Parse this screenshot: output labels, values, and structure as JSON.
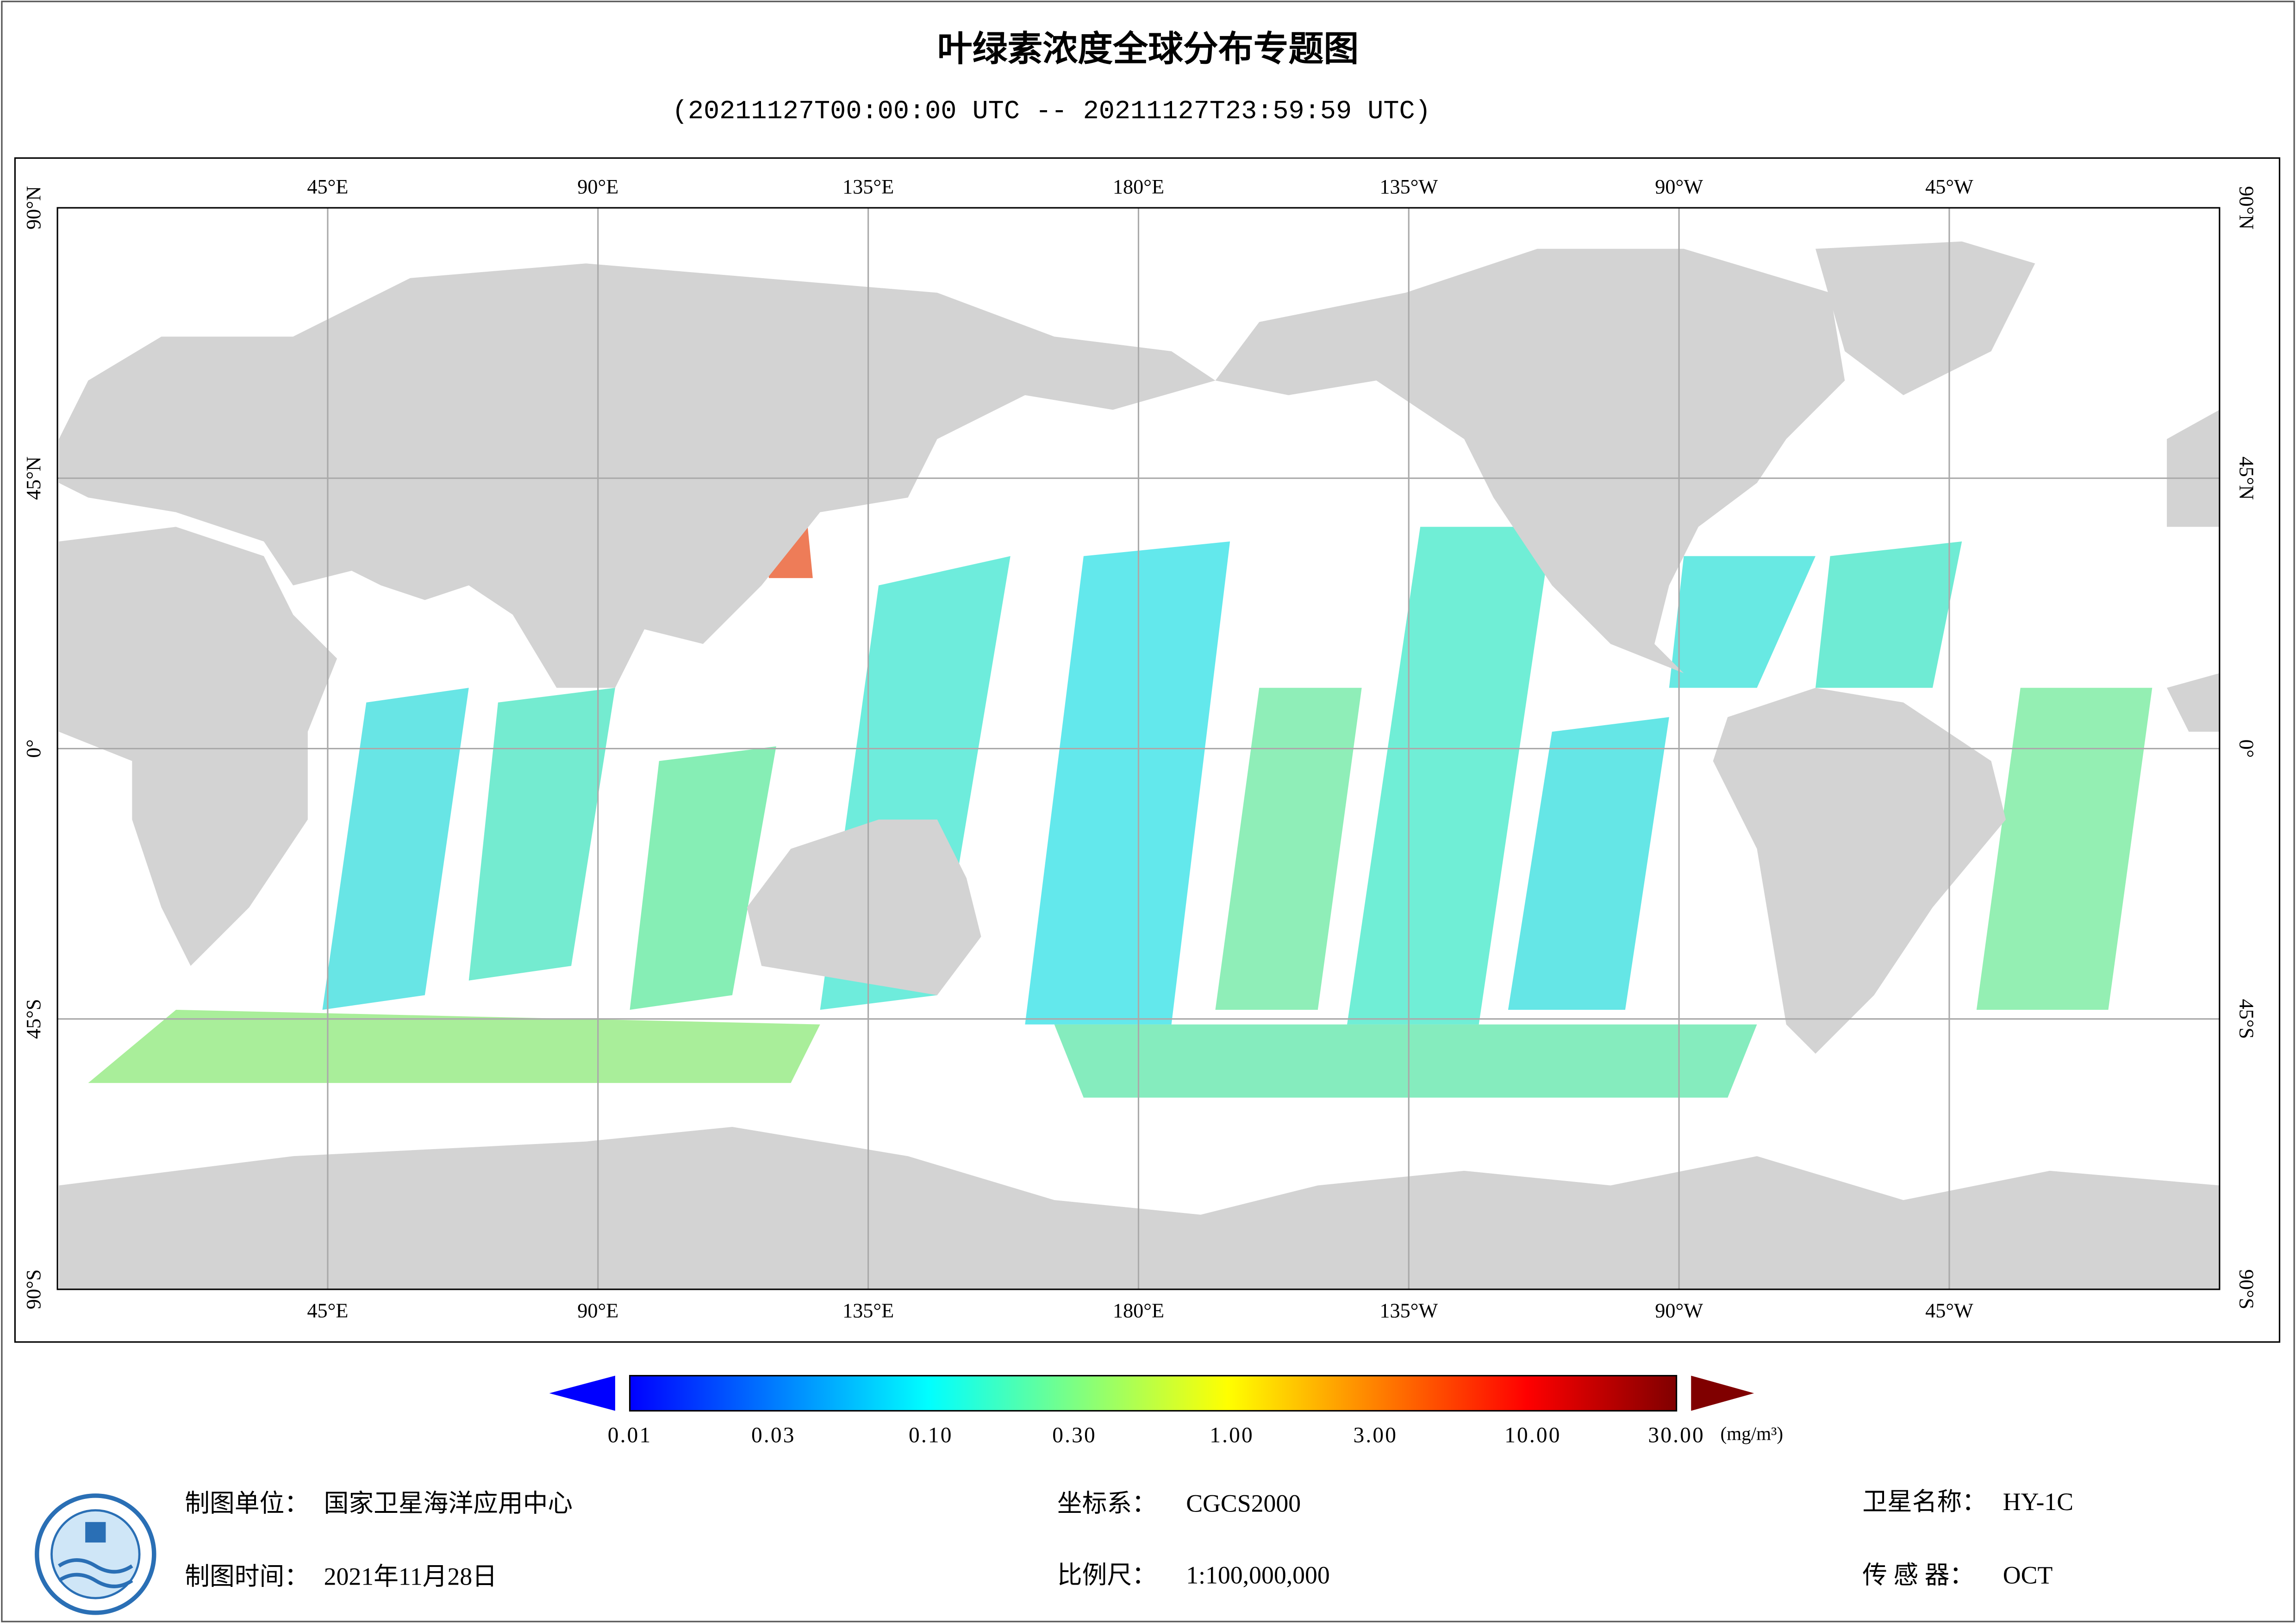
{
  "title": "叶绿素浓度全球分布专题图",
  "subtitle": "(20211127T00:00:00 UTC -- 20211127T23:59:59 UTC)",
  "map": {
    "lon_range": [
      0,
      360
    ],
    "lat_range": [
      -90,
      90
    ],
    "grid": true,
    "lon_ticks": [
      {
        "value": 45,
        "label": "45°E"
      },
      {
        "value": 90,
        "label": "90°E"
      },
      {
        "value": 135,
        "label": "135°E"
      },
      {
        "value": 180,
        "label": "180°E"
      },
      {
        "value": 225,
        "label": "135°W"
      },
      {
        "value": 270,
        "label": "90°W"
      },
      {
        "value": 315,
        "label": "45°W"
      }
    ],
    "lat_ticks": [
      {
        "value": 90,
        "label": "90°N"
      },
      {
        "value": 45,
        "label": "45°N"
      },
      {
        "value": 0,
        "label": "0°"
      },
      {
        "value": -45,
        "label": "45°S"
      },
      {
        "value": -90,
        "label": "90°S"
      }
    ]
  },
  "colorbar": {
    "range": [
      0.01,
      30
    ],
    "log": true,
    "unit": "(mg/m³)",
    "colors": [
      "#0000ff",
      "#0080ff",
      "#00ffff",
      "#80ff80",
      "#ffff00",
      "#ff8000",
      "#ff0000",
      "#800000"
    ],
    "ticks": [
      0.01,
      {
        "value": 0.03,
        "label": "0.03"
      },
      {
        "value": 0.1,
        "label": "0.10"
      },
      {
        "value": 0.3,
        "label": "0.30"
      },
      {
        "value": 1,
        "label": "1.00"
      },
      {
        "value": 3,
        "label": "3.00"
      },
      {
        "value": 10,
        "label": "10.00"
      },
      {
        "value": 30,
        "label": "30.00"
      }
    ]
  },
  "footer": {
    "unit": {
      "label": "制图单位：",
      "value": "国家卫星海洋应用中心"
    },
    "date": {
      "label": "制图时间：",
      "value": "2021年11月28日"
    },
    "crs": {
      "label": "坐标系：",
      "value": "CGCS2000"
    },
    "scale": {
      "label": "比例尺：",
      "value": "1:100,000,000"
    },
    "satellite": {
      "label": "卫星名称：",
      "value": "HY-1C"
    },
    "sensor": {
      "label": "传 感 器：",
      "value": "OCT"
    }
  }
}
